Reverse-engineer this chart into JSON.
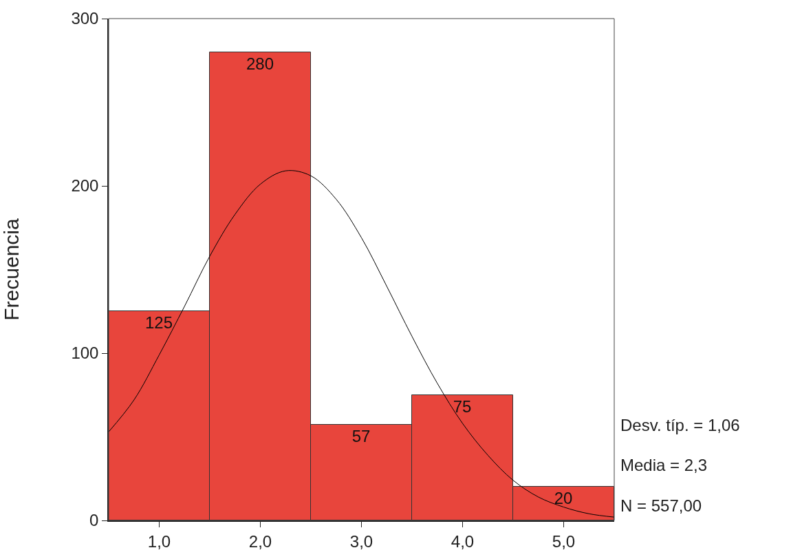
{
  "chart_data": {
    "type": "histogram",
    "ylabel": "Frecuencia",
    "bins": [
      0.5,
      1.5,
      2.5,
      3.5,
      4.5,
      5.5
    ],
    "values": [
      125,
      280,
      57,
      75,
      20
    ],
    "color": "#e8453c",
    "value_labels": [
      "125",
      "280",
      "57",
      "75",
      "20"
    ],
    "series": [
      {
        "type": "line",
        "color": "#000000",
        "x": [
          0.5,
          0.75,
          1,
          1.25,
          1.5,
          1.75,
          2,
          2.25,
          2.5,
          2.75,
          3,
          3.25,
          3.5,
          3.75,
          4,
          4.25,
          4.5,
          4.75,
          5,
          5.25,
          5.5
        ],
        "values": [
          53,
          72,
          99,
          128,
          158,
          183,
          201,
          209,
          206,
          192,
          169,
          140,
          110,
          82,
          58,
          39,
          24,
          14,
          8,
          4,
          2
        ]
      }
    ],
    "xlim": [
      0.5,
      5.5
    ],
    "ylim": [
      0,
      300
    ],
    "xticks": [
      {
        "value": 1,
        "label": "1,0"
      },
      {
        "value": 2,
        "label": "2,0"
      },
      {
        "value": 3,
        "label": "3,0"
      },
      {
        "value": 4,
        "label": "4,0"
      },
      {
        "value": 5,
        "label": "5,0"
      }
    ],
    "yticks": [
      0,
      100,
      200,
      300
    ],
    "annotations": [
      "Desv. típ. = 1,06",
      "Media = 2,3",
      "N = 557,00"
    ]
  }
}
